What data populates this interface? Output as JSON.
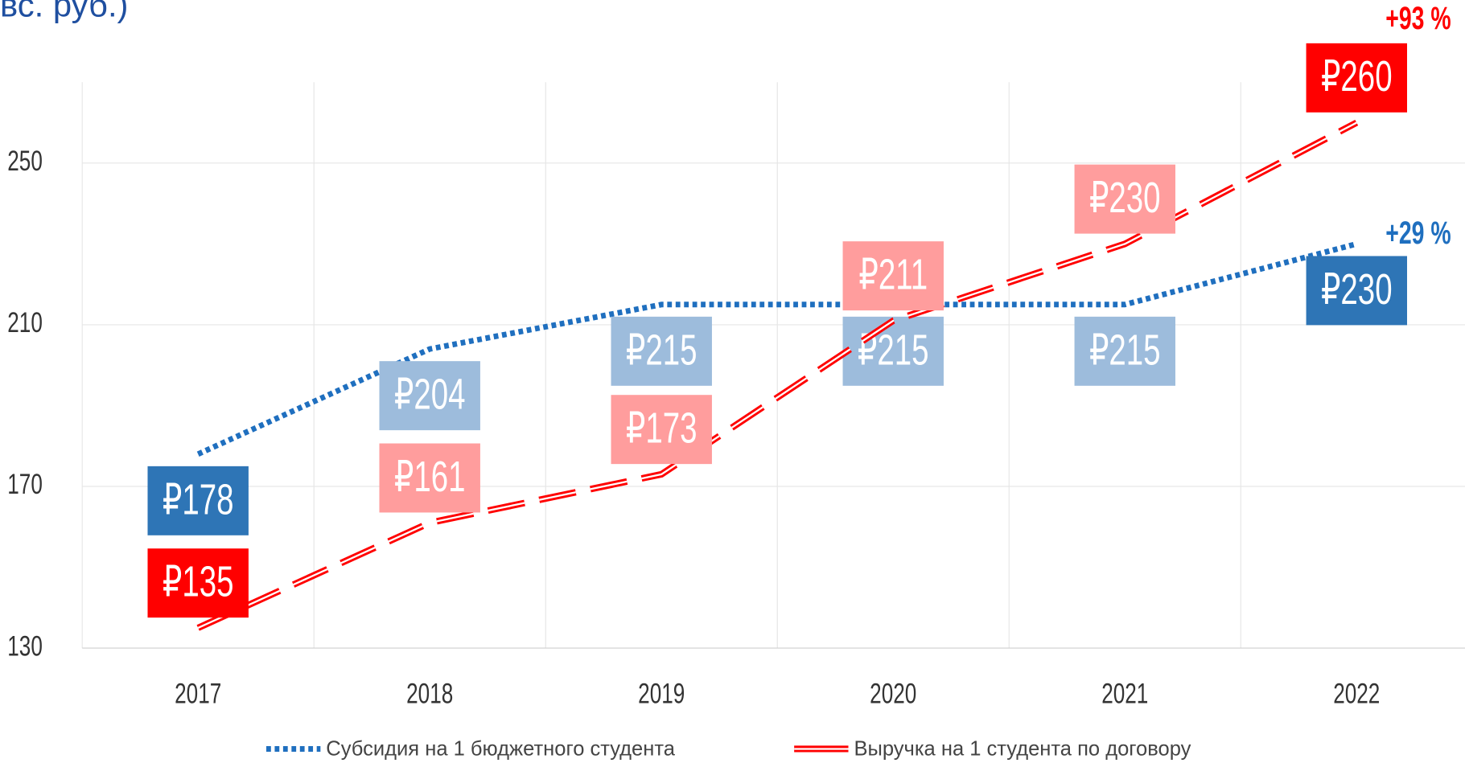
{
  "chart_data": {
    "type": "line",
    "title": "вс. руб.)",
    "categories": [
      "2017",
      "2018",
      "2019",
      "2020",
      "2021",
      "2022"
    ],
    "ylim": [
      130,
      270
    ],
    "yticks": [
      130,
      170,
      210,
      250
    ],
    "grid": true,
    "legend": "bottom",
    "series": [
      {
        "name": "Субсидия на 1 бюджетного студента",
        "color": "#1f6fbf",
        "style": "dotted",
        "values": [
          178,
          204,
          215,
          215,
          215,
          230
        ],
        "value_labels": [
          "₽178",
          "₽204",
          "₽215",
          "₽215",
          "₽215",
          "₽230"
        ],
        "label_colors": [
          "#2e75b6",
          "#9dbcdc",
          "#9dbcdc",
          "#9dbcdc",
          "#9dbcdc",
          "#2e75b6"
        ],
        "annotation": "+29 %"
      },
      {
        "name": "Выручка на 1 студента по договору",
        "color": "#ff0000",
        "style": "double-dashed",
        "values": [
          135,
          161,
          173,
          211,
          230,
          260
        ],
        "value_labels": [
          "₽135",
          "₽161",
          "₽173",
          "₽211",
          "₽230",
          "₽260"
        ],
        "label_colors": [
          "#ff0000",
          "#ff9d9d",
          "#ff9d9d",
          "#ff9d9d",
          "#ff9d9d",
          "#ff0000"
        ],
        "annotation": "+93 %"
      }
    ]
  }
}
